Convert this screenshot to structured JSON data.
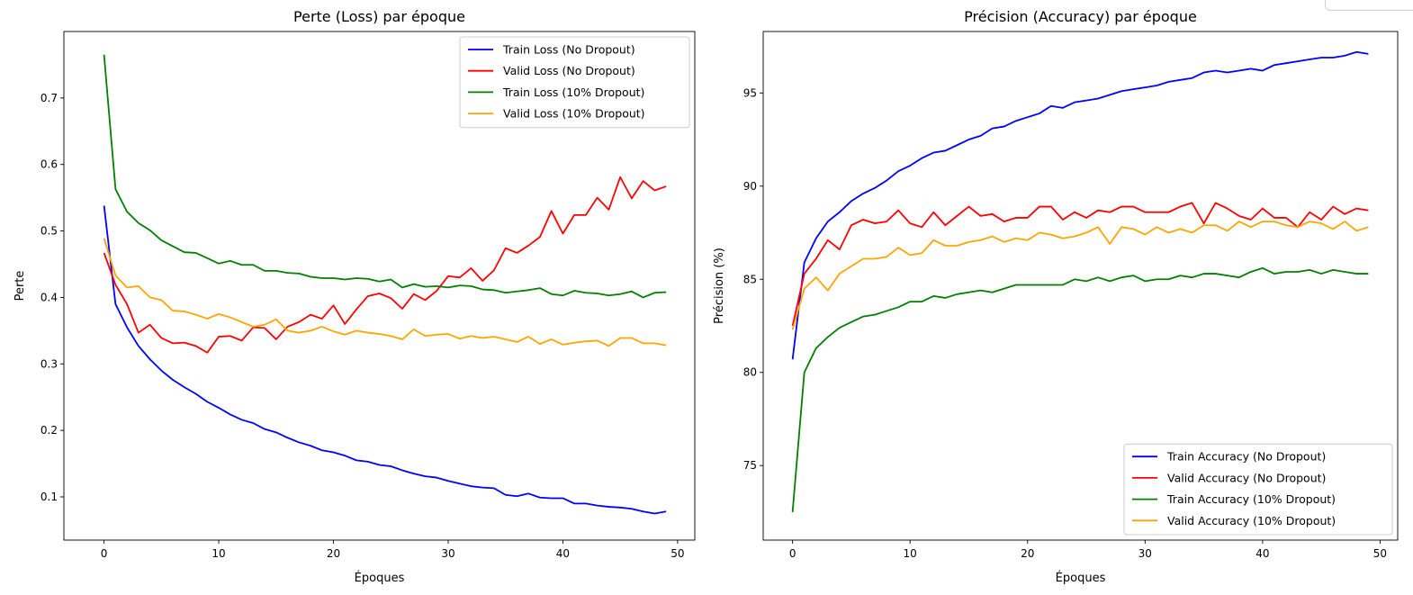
{
  "chart_data": [
    {
      "type": "line",
      "title": "Perte (Loss) par époque",
      "xlabel": "Époques",
      "ylabel": "Perte",
      "xlim": [
        -3.5,
        51.5
      ],
      "ylim": [
        0.035,
        0.8
      ],
      "xticks": [
        0,
        10,
        20,
        30,
        40,
        50
      ],
      "yticks": [
        0.1,
        0.2,
        0.3,
        0.4,
        0.5,
        0.6,
        0.7
      ],
      "ytick_decimals": 1,
      "grid": false,
      "legend_position": "top-right",
      "series": [
        {
          "name": "Train Loss (No Dropout)",
          "color": "#0000ff",
          "values": [
            0.538,
            0.39,
            0.355,
            0.327,
            0.307,
            0.29,
            0.276,
            0.265,
            0.255,
            0.243,
            0.234,
            0.224,
            0.216,
            0.211,
            0.202,
            0.197,
            0.189,
            0.182,
            0.177,
            0.17,
            0.167,
            0.162,
            0.155,
            0.153,
            0.148,
            0.146,
            0.14,
            0.135,
            0.131,
            0.129,
            0.124,
            0.12,
            0.116,
            0.114,
            0.113,
            0.103,
            0.101,
            0.105,
            0.099,
            0.098,
            0.098,
            0.09,
            0.09,
            0.087,
            0.085,
            0.084,
            0.082,
            0.078,
            0.075,
            0.078
          ]
        },
        {
          "name": "Valid Loss (No Dropout)",
          "color": "#ff0000",
          "values": [
            0.467,
            0.419,
            0.39,
            0.347,
            0.359,
            0.339,
            0.331,
            0.332,
            0.327,
            0.317,
            0.341,
            0.342,
            0.335,
            0.355,
            0.354,
            0.337,
            0.356,
            0.363,
            0.374,
            0.368,
            0.388,
            0.36,
            0.382,
            0.402,
            0.406,
            0.399,
            0.383,
            0.405,
            0.396,
            0.41,
            0.432,
            0.43,
            0.444,
            0.425,
            0.441,
            0.474,
            0.467,
            0.478,
            0.491,
            0.53,
            0.496,
            0.524,
            0.524,
            0.55,
            0.532,
            0.581,
            0.549,
            0.575,
            0.561,
            0.567
          ]
        },
        {
          "name": "Train Loss (10% Dropout)",
          "color": "#008000",
          "values": [
            0.765,
            0.563,
            0.529,
            0.512,
            0.501,
            0.486,
            0.477,
            0.468,
            0.467,
            0.459,
            0.451,
            0.455,
            0.449,
            0.449,
            0.44,
            0.44,
            0.437,
            0.436,
            0.431,
            0.429,
            0.429,
            0.427,
            0.429,
            0.428,
            0.424,
            0.427,
            0.415,
            0.42,
            0.416,
            0.417,
            0.415,
            0.418,
            0.417,
            0.412,
            0.411,
            0.407,
            0.409,
            0.411,
            0.414,
            0.405,
            0.403,
            0.41,
            0.407,
            0.406,
            0.403,
            0.405,
            0.409,
            0.4,
            0.407,
            0.408
          ]
        },
        {
          "name": "Valid Loss (10% Dropout)",
          "color": "#ffa500",
          "values": [
            0.489,
            0.433,
            0.415,
            0.417,
            0.4,
            0.396,
            0.38,
            0.379,
            0.374,
            0.368,
            0.375,
            0.37,
            0.363,
            0.356,
            0.359,
            0.367,
            0.35,
            0.347,
            0.35,
            0.356,
            0.349,
            0.344,
            0.35,
            0.347,
            0.345,
            0.342,
            0.337,
            0.352,
            0.342,
            0.344,
            0.345,
            0.338,
            0.342,
            0.339,
            0.341,
            0.337,
            0.333,
            0.341,
            0.33,
            0.337,
            0.329,
            0.332,
            0.334,
            0.335,
            0.327,
            0.339,
            0.339,
            0.331,
            0.331,
            0.328
          ]
        }
      ]
    },
    {
      "type": "line",
      "title": "Précision (Accuracy) par époque",
      "xlabel": "Époques",
      "ylabel": "Précision (%)",
      "xlim": [
        -2.5,
        51.5
      ],
      "ylim": [
        71.0,
        98.3
      ],
      "xticks": [
        0,
        10,
        20,
        30,
        40,
        50
      ],
      "yticks": [
        75,
        80,
        85,
        90,
        95
      ],
      "ytick_decimals": 0,
      "grid": false,
      "legend_position": "bottom-right",
      "series": [
        {
          "name": "Train Accuracy (No Dropout)",
          "color": "#0000ff",
          "values": [
            80.7,
            85.9,
            87.2,
            88.1,
            88.6,
            89.2,
            89.6,
            89.9,
            90.3,
            90.8,
            91.1,
            91.5,
            91.8,
            91.9,
            92.2,
            92.5,
            92.7,
            93.1,
            93.2,
            93.5,
            93.7,
            93.9,
            94.3,
            94.2,
            94.5,
            94.6,
            94.7,
            94.9,
            95.1,
            95.2,
            95.3,
            95.4,
            95.6,
            95.7,
            95.8,
            96.1,
            96.2,
            96.1,
            96.2,
            96.3,
            96.2,
            96.5,
            96.6,
            96.7,
            96.8,
            96.9,
            96.9,
            97.0,
            97.2,
            97.1
          ]
        },
        {
          "name": "Valid Accuracy (No Dropout)",
          "color": "#ff0000",
          "values": [
            82.5,
            85.3,
            86.1,
            87.1,
            86.6,
            87.9,
            88.2,
            88.0,
            88.1,
            88.7,
            88.0,
            87.8,
            88.6,
            87.9,
            88.4,
            88.9,
            88.4,
            88.5,
            88.1,
            88.3,
            88.3,
            88.9,
            88.9,
            88.2,
            88.6,
            88.3,
            88.7,
            88.6,
            88.9,
            88.9,
            88.6,
            88.6,
            88.6,
            88.9,
            89.1,
            88.0,
            89.1,
            88.8,
            88.4,
            88.2,
            88.8,
            88.3,
            88.3,
            87.8,
            88.6,
            88.2,
            88.9,
            88.5,
            88.8,
            88.7
          ]
        },
        {
          "name": "Train Accuracy (10% Dropout)",
          "color": "#008000",
          "values": [
            72.5,
            80.0,
            81.3,
            81.9,
            82.4,
            82.7,
            83.0,
            83.1,
            83.3,
            83.5,
            83.8,
            83.8,
            84.1,
            84.0,
            84.2,
            84.3,
            84.4,
            84.3,
            84.5,
            84.7,
            84.7,
            84.7,
            84.7,
            84.7,
            85.0,
            84.9,
            85.1,
            84.9,
            85.1,
            85.2,
            84.9,
            85.0,
            85.0,
            85.2,
            85.1,
            85.3,
            85.3,
            85.2,
            85.1,
            85.4,
            85.6,
            85.3,
            85.4,
            85.4,
            85.5,
            85.3,
            85.5,
            85.4,
            85.3,
            85.3
          ]
        },
        {
          "name": "Valid Accuracy (10% Dropout)",
          "color": "#ffa500",
          "values": [
            82.3,
            84.5,
            85.1,
            84.4,
            85.3,
            85.7,
            86.1,
            86.1,
            86.2,
            86.7,
            86.3,
            86.4,
            87.1,
            86.8,
            86.8,
            87.0,
            87.1,
            87.3,
            87.0,
            87.2,
            87.1,
            87.5,
            87.4,
            87.2,
            87.3,
            87.5,
            87.8,
            86.9,
            87.8,
            87.7,
            87.4,
            87.8,
            87.5,
            87.7,
            87.5,
            87.9,
            87.9,
            87.6,
            88.1,
            87.8,
            88.1,
            88.1,
            87.9,
            87.8,
            88.1,
            88.0,
            87.7,
            88.1,
            87.6,
            87.8
          ]
        }
      ]
    }
  ]
}
